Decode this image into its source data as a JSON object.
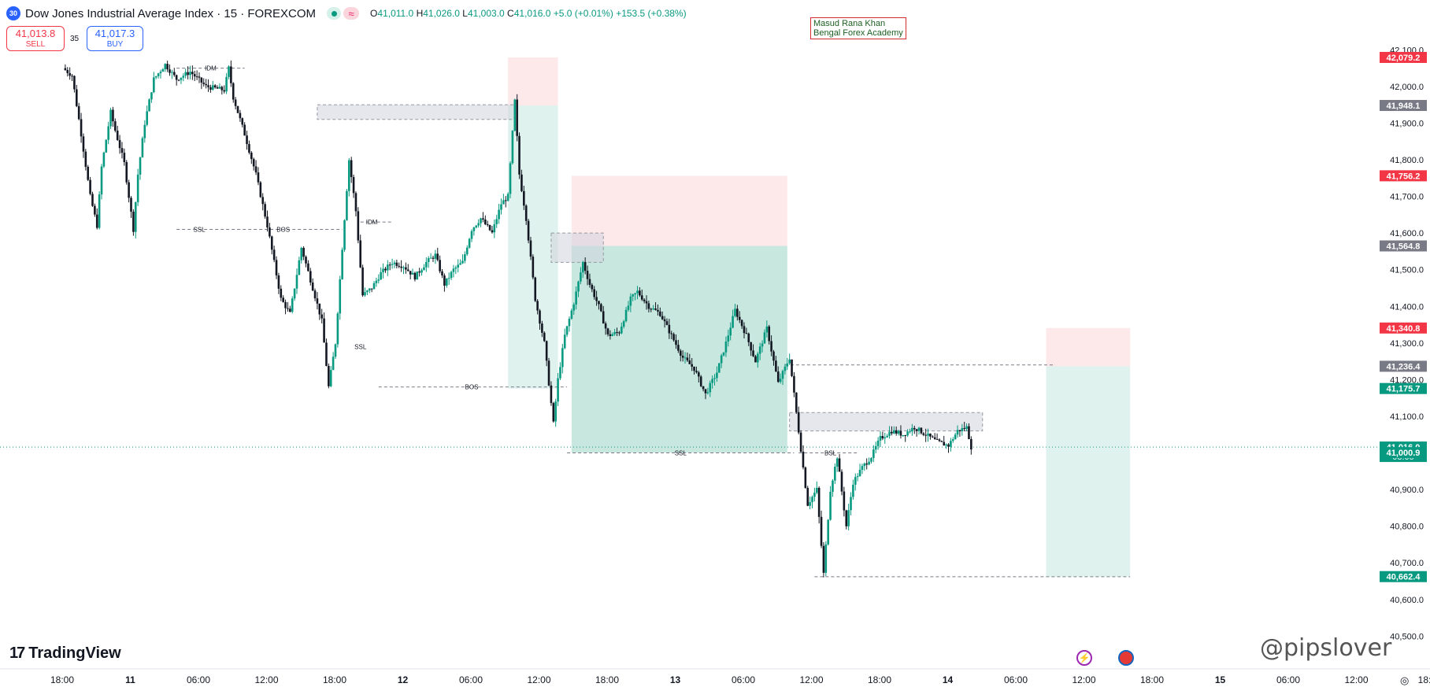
{
  "header": {
    "badge": "30",
    "title": "Dow Jones Industrial Average Index · 15 · FOREXCOM",
    "ohlc": {
      "o_label": "O",
      "o": "41,011.0",
      "h_label": "H",
      "h": "41,026.0",
      "l_label": "L",
      "l": "41,003.0",
      "c_label": "C",
      "c": "41,016.0",
      "change": "+5.0 (+0.01%)",
      "change2": "+153.5 (+0.38%)"
    }
  },
  "trade": {
    "sell_price": "41,013.8",
    "sell_label": "SELL",
    "spread": "35",
    "buy_price": "41,017.3",
    "buy_label": "BUY"
  },
  "watermark": {
    "line1": "Masud Rana Khan",
    "line2": "Bengal Forex Academy"
  },
  "branding": {
    "logo": "TradingView",
    "handle": "@pipslover"
  },
  "colors": {
    "up": "#089981",
    "down": "#131722",
    "bearish_zone": "#fde8ea",
    "bullish_zone": "#dff2ee",
    "accent_red": "#f23645",
    "accent_green": "#089981",
    "grey_label": "#787b86"
  },
  "chart_data": {
    "type": "candlestick",
    "title": "Dow Jones Industrial Average Index · 15 · FOREXCOM",
    "ylim": [
      40475,
      42150
    ],
    "y_ticks": [
      42100,
      42000,
      41900,
      41800,
      41700,
      41600,
      41500,
      41400,
      41300,
      41200,
      41100,
      40900,
      40800,
      40700,
      40600,
      40500
    ],
    "y_tick_labels": [
      "42,100.0",
      "42,000.0",
      "41,900.0",
      "41,800.0",
      "41,700.0",
      "41,600.0",
      "41,500.0",
      "41,400.0",
      "41,300.0",
      "41,200.0",
      "41,100.0",
      "40,900.0",
      "40,800.0",
      "40,700.0",
      "40,600.0",
      "40,500.0"
    ],
    "x_tick_labels": [
      "18:00",
      "11",
      "06:00",
      "12:00",
      "18:00",
      "12",
      "06:00",
      "12:00",
      "18:00",
      "13",
      "06:00",
      "12:00",
      "18:00",
      "14",
      "06:00",
      "12:00",
      "18:00",
      "15",
      "06:00",
      "12:00",
      "18:"
    ],
    "x_tick_bold": [
      false,
      true,
      false,
      false,
      false,
      true,
      false,
      false,
      false,
      true,
      false,
      false,
      false,
      true,
      false,
      false,
      false,
      true,
      false,
      false,
      false
    ],
    "price_labels": [
      {
        "value": 42079.2,
        "text": "42,079.2",
        "color": "#f23645"
      },
      {
        "value": 41948.1,
        "text": "41,948.1",
        "color": "#787b86"
      },
      {
        "value": 41756.2,
        "text": "41,756.2",
        "color": "#f23645"
      },
      {
        "value": 41564.8,
        "text": "41,564.8",
        "color": "#787b86"
      },
      {
        "value": 41340.8,
        "text": "41,340.8",
        "color": "#f23645"
      },
      {
        "value": 41236.4,
        "text": "41,236.4",
        "color": "#787b86"
      },
      {
        "value": 41175.7,
        "text": "41,175.7",
        "color": "#089981"
      },
      {
        "value": 41016.0,
        "text": "41,016.0",
        "color": "#089981",
        "sub": "08:05"
      },
      {
        "value": 41000.9,
        "text": "41,000.9",
        "color": "#089981"
      },
      {
        "value": 40662.4,
        "text": "40,662.4",
        "color": "#089981"
      }
    ],
    "current_price": 41016.0,
    "price_path": [
      [
        0.0,
        42050
      ],
      [
        0.4,
        42030
      ],
      [
        0.8,
        41870
      ],
      [
        1.2,
        41700
      ],
      [
        1.5,
        41620
      ],
      [
        1.7,
        41780
      ],
      [
        2.1,
        41930
      ],
      [
        2.3,
        41880
      ],
      [
        2.7,
        41790
      ],
      [
        3.1,
        41610
      ],
      [
        3.3,
        41760
      ],
      [
        3.6,
        41900
      ],
      [
        4.0,
        42020
      ],
      [
        4.5,
        42060
      ],
      [
        5.0,
        42020
      ],
      [
        5.6,
        42040
      ],
      [
        6.3,
        42000
      ],
      [
        7.1,
        41990
      ],
      [
        7.3,
        42050
      ],
      [
        7.5,
        41970
      ],
      [
        8.0,
        41870
      ],
      [
        8.5,
        41760
      ],
      [
        9.0,
        41620
      ],
      [
        9.6,
        41420
      ],
      [
        10.0,
        41380
      ],
      [
        10.5,
        41560
      ],
      [
        11.0,
        41450
      ],
      [
        11.4,
        41360
      ],
      [
        11.7,
        41180
      ],
      [
        12.0,
        41300
      ],
      [
        12.3,
        41560
      ],
      [
        12.6,
        41800
      ],
      [
        12.9,
        41660
      ],
      [
        13.2,
        41430
      ],
      [
        13.6,
        41450
      ],
      [
        14.0,
        41490
      ],
      [
        14.5,
        41520
      ],
      [
        15.0,
        41510
      ],
      [
        15.5,
        41480
      ],
      [
        16.0,
        41520
      ],
      [
        16.4,
        41540
      ],
      [
        16.8,
        41460
      ],
      [
        17.2,
        41500
      ],
      [
        17.6,
        41520
      ],
      [
        18.0,
        41610
      ],
      [
        18.4,
        41640
      ],
      [
        18.9,
        41600
      ],
      [
        19.3,
        41680
      ],
      [
        19.6,
        41700
      ],
      [
        19.9,
        41960
      ],
      [
        20.1,
        41760
      ],
      [
        20.4,
        41640
      ],
      [
        20.8,
        41420
      ],
      [
        21.2,
        41300
      ],
      [
        21.6,
        41080
      ],
      [
        21.8,
        41200
      ],
      [
        22.1,
        41320
      ],
      [
        22.5,
        41410
      ],
      [
        22.9,
        41520
      ],
      [
        23.2,
        41460
      ],
      [
        23.6,
        41400
      ],
      [
        24.0,
        41320
      ],
      [
        24.5,
        41330
      ],
      [
        25.0,
        41420
      ],
      [
        25.3,
        41440
      ],
      [
        25.8,
        41400
      ],
      [
        26.3,
        41380
      ],
      [
        26.8,
        41320
      ],
      [
        27.3,
        41260
      ],
      [
        27.8,
        41230
      ],
      [
        28.3,
        41160
      ],
      [
        28.8,
        41220
      ],
      [
        29.2,
        41300
      ],
      [
        29.6,
        41390
      ],
      [
        30.1,
        41320
      ],
      [
        30.5,
        41250
      ],
      [
        31.0,
        41340
      ],
      [
        31.5,
        41190
      ],
      [
        32.0,
        41260
      ],
      [
        32.4,
        41060
      ],
      [
        32.8,
        40860
      ],
      [
        33.2,
        40900
      ],
      [
        33.5,
        40670
      ],
      [
        33.8,
        40900
      ],
      [
        34.1,
        40990
      ],
      [
        34.5,
        40800
      ],
      [
        34.8,
        40920
      ],
      [
        35.2,
        40960
      ],
      [
        35.6,
        40990
      ],
      [
        36.0,
        41040
      ],
      [
        36.5,
        41060
      ],
      [
        37.0,
        41050
      ],
      [
        37.5,
        41070
      ],
      [
        38.0,
        41050
      ],
      [
        38.5,
        41030
      ],
      [
        39.0,
        41020
      ],
      [
        39.4,
        41060
      ],
      [
        39.8,
        41070
      ],
      [
        40.0,
        41016
      ]
    ],
    "zones": [
      {
        "kind": "supply",
        "x1": 19.6,
        "x2": 21.8,
        "y1": 41948.1,
        "y2": 42079.2,
        "color": "#fde8ea"
      },
      {
        "kind": "demand",
        "x1": 19.6,
        "x2": 21.8,
        "y1": 41175.7,
        "y2": 41948.1,
        "color": "#dff2ee"
      },
      {
        "kind": "supply",
        "x1": 22.4,
        "x2": 31.9,
        "y1": 41564.8,
        "y2": 41756.2,
        "color": "#fde8ea"
      },
      {
        "kind": "demand",
        "x1": 22.4,
        "x2": 31.9,
        "y1": 41000.9,
        "y2": 41564.8,
        "color": "#c7e7df"
      },
      {
        "kind": "supply",
        "x1": 43.3,
        "x2": 47.0,
        "y1": 41236.4,
        "y2": 41340.8,
        "color": "#fde8ea"
      },
      {
        "kind": "demand",
        "x1": 43.3,
        "x2": 47.0,
        "y1": 40662.4,
        "y2": 41236.4,
        "color": "#dff2ee"
      }
    ],
    "grey_zones": [
      {
        "x1": 11.2,
        "x2": 19.9,
        "y1": 41910,
        "y2": 41950
      },
      {
        "x1": 21.5,
        "x2": 23.8,
        "y1": 41520,
        "y2": 41600
      },
      {
        "x1": 32.0,
        "x2": 40.5,
        "y1": 41060,
        "y2": 41110
      }
    ],
    "annotations": [
      {
        "text": "IDM",
        "x": 6.5,
        "y": 42050
      },
      {
        "text": "SSL",
        "x": 6.0,
        "y": 41610
      },
      {
        "text": "BOS",
        "x": 9.7,
        "y": 41610
      },
      {
        "text": "IDM",
        "x": 13.6,
        "y": 41630
      },
      {
        "text": "SSL",
        "x": 13.1,
        "y": 41290
      },
      {
        "text": "BOS",
        "x": 18.0,
        "y": 41180
      },
      {
        "text": "SSL",
        "x": 27.2,
        "y": 41000
      },
      {
        "text": "BSL",
        "x": 33.8,
        "y": 41000
      }
    ],
    "level_lines": [
      {
        "x1": 5.0,
        "x2": 8.0,
        "y": 42050
      },
      {
        "x1": 5.0,
        "x2": 12.3,
        "y": 41610
      },
      {
        "x1": 13.1,
        "x2": 14.5,
        "y": 41630
      },
      {
        "x1": 13.9,
        "x2": 22.2,
        "y": 41180
      },
      {
        "x1": 22.2,
        "x2": 32.2,
        "y": 41000
      },
      {
        "x1": 32.4,
        "x2": 35.0,
        "y": 41000
      },
      {
        "x1": 31.8,
        "x2": 43.7,
        "y": 41240
      },
      {
        "x1": 33.1,
        "x2": 47.0,
        "y": 40662
      }
    ]
  }
}
